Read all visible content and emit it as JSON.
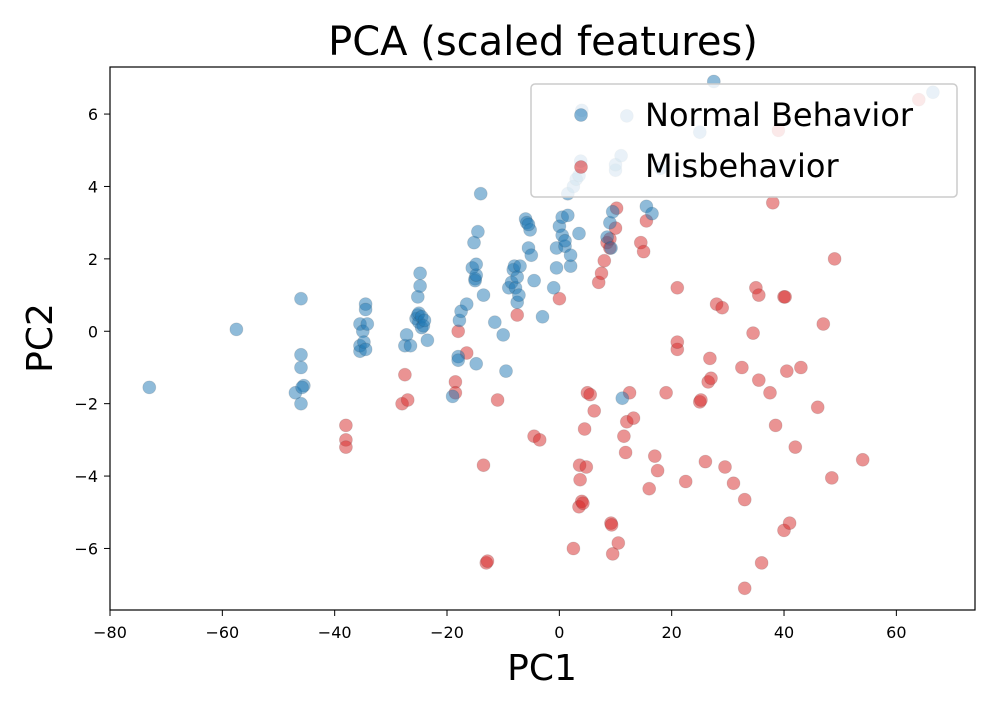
{
  "chart_data": {
    "type": "scatter",
    "title": "PCA (scaled features)",
    "xlabel": "PC1",
    "ylabel": "PC2",
    "xlim": [
      -80,
      74
    ],
    "ylim": [
      -7.7,
      7.3
    ],
    "xticks": [
      -80,
      -60,
      -40,
      -20,
      0,
      20,
      40,
      60
    ],
    "yticks": [
      -6,
      -4,
      -2,
      0,
      2,
      4,
      6
    ],
    "xtick_labels": [
      "−80",
      "−60",
      "−40",
      "−20",
      "0",
      "20",
      "40",
      "60"
    ],
    "ytick_labels": [
      "−6",
      "−4",
      "−2",
      "0",
      "2",
      "4",
      "6"
    ],
    "legend_position": "top-right",
    "series": [
      {
        "name": "Misbehavior",
        "color": "#d62728",
        "points": [
          [
            -38,
            -2.6
          ],
          [
            -38,
            -3.0
          ],
          [
            -38,
            -3.2
          ],
          [
            -28,
            -2.0
          ],
          [
            -27.5,
            -1.2
          ],
          [
            -27,
            -1.9
          ],
          [
            -18.5,
            -1.4
          ],
          [
            -18.5,
            -1.7
          ],
          [
            -18,
            0
          ],
          [
            -16.5,
            -0.6
          ],
          [
            -13.5,
            -3.7
          ],
          [
            -13,
            -6.4
          ],
          [
            -12.8,
            -6.35
          ],
          [
            -11,
            -1.9
          ],
          [
            -7.5,
            0.45
          ],
          [
            -4.5,
            -2.9
          ],
          [
            -3.5,
            -3.0
          ],
          [
            0,
            0.9
          ],
          [
            2.5,
            -6
          ],
          [
            3.5,
            -4.85
          ],
          [
            3.6,
            -3.7
          ],
          [
            3.7,
            -4.1
          ],
          [
            4.0,
            -4.7
          ],
          [
            4.2,
            -4.75
          ],
          [
            4.5,
            -2.7
          ],
          [
            4.8,
            -3.75
          ],
          [
            5.0,
            -1.7
          ],
          [
            5.5,
            -1.75
          ],
          [
            6.2,
            -2.2
          ],
          [
            7,
            1.35
          ],
          [
            7.5,
            1.6
          ],
          [
            8,
            1.95
          ],
          [
            8.5,
            2.45
          ],
          [
            9,
            2.3
          ],
          [
            9,
            2.55
          ],
          [
            9.2,
            -5.3
          ],
          [
            9.3,
            -5.35
          ],
          [
            9.5,
            -6.15
          ],
          [
            10,
            2.85
          ],
          [
            10.2,
            3.4
          ],
          [
            10.5,
            -5.85
          ],
          [
            11.5,
            -2.9
          ],
          [
            11.8,
            -3.35
          ],
          [
            12,
            -2.5
          ],
          [
            12.5,
            -1.7
          ],
          [
            13.2,
            -2.4
          ],
          [
            14.5,
            2.45
          ],
          [
            15,
            2.2
          ],
          [
            15.5,
            3.05
          ],
          [
            16,
            -4.35
          ],
          [
            17,
            -3.45
          ],
          [
            17.5,
            -3.85
          ],
          [
            19,
            -1.7
          ],
          [
            21,
            1.2
          ],
          [
            21,
            -0.5
          ],
          [
            21,
            -0.3
          ],
          [
            22.5,
            -4.15
          ],
          [
            25,
            -1.95
          ],
          [
            25.2,
            -1.9
          ],
          [
            26,
            -3.6
          ],
          [
            26.5,
            -1.4
          ],
          [
            26.8,
            -0.75
          ],
          [
            27,
            -1.3
          ],
          [
            28,
            0.75
          ],
          [
            29,
            0.65
          ],
          [
            29.5,
            -3.75
          ],
          [
            31,
            -4.2
          ],
          [
            32.5,
            -1.0
          ],
          [
            33,
            -4.65
          ],
          [
            33,
            -7.1
          ],
          [
            34.5,
            -0.05
          ],
          [
            35,
            1.2
          ],
          [
            35.5,
            1.0
          ],
          [
            35.5,
            -1.35
          ],
          [
            36,
            -6.4
          ],
          [
            37.5,
            -1.7
          ],
          [
            38,
            3.55
          ],
          [
            38.5,
            -2.6
          ],
          [
            39,
            5.55
          ],
          [
            40,
            0.95
          ],
          [
            40.2,
            0.95
          ],
          [
            40,
            -5.5
          ],
          [
            40.5,
            -1.1
          ],
          [
            41,
            -5.3
          ],
          [
            42,
            -3.2
          ],
          [
            43,
            -1.0
          ],
          [
            46,
            -2.1
          ],
          [
            47,
            0.2
          ],
          [
            48.5,
            -4.05
          ],
          [
            49,
            2.0
          ],
          [
            54,
            -3.55
          ],
          [
            64,
            6.4
          ]
        ]
      },
      {
        "name": "Normal Behavior",
        "color": "#1f77b4",
        "points": [
          [
            -73,
            -1.55
          ],
          [
            -57.5,
            0.05
          ],
          [
            -47,
            -1.7
          ],
          [
            -46,
            0.9
          ],
          [
            -46,
            -0.65
          ],
          [
            -46,
            -1.0
          ],
          [
            -46,
            -2.0
          ],
          [
            -45.5,
            -1.5
          ],
          [
            -45.8,
            -1.55
          ],
          [
            -35.5,
            0.2
          ],
          [
            -35.5,
            -0.55
          ],
          [
            -35.5,
            -0.4
          ],
          [
            -35,
            0.0
          ],
          [
            -34.8,
            -0.3
          ],
          [
            -34.5,
            0.75
          ],
          [
            -34.5,
            0.6
          ],
          [
            -34.2,
            0.2
          ],
          [
            -34.5,
            -0.5
          ],
          [
            -27.5,
            -0.4
          ],
          [
            -27.2,
            -0.1
          ],
          [
            -26.5,
            -0.4
          ],
          [
            -25.5,
            0.35
          ],
          [
            -25.2,
            0.45
          ],
          [
            -25,
            0.25
          ],
          [
            -25,
            0.5
          ],
          [
            -25.2,
            0.95
          ],
          [
            -24.8,
            1.25
          ],
          [
            -24.8,
            1.6
          ],
          [
            -24.5,
            0.1
          ],
          [
            -24.5,
            0.4
          ],
          [
            -24.2,
            0.15
          ],
          [
            -24,
            0.3
          ],
          [
            -23.5,
            -0.25
          ],
          [
            -19,
            -1.8
          ],
          [
            -18,
            -0.7
          ],
          [
            -18,
            -0.8
          ],
          [
            -17.8,
            0.3
          ],
          [
            -17.5,
            0.55
          ],
          [
            -16.5,
            0.75
          ],
          [
            -15.5,
            1.75
          ],
          [
            -15.2,
            2.45
          ],
          [
            -15,
            1.45
          ],
          [
            -15,
            1.4
          ],
          [
            -14.8,
            1.55
          ],
          [
            -14.8,
            1.85
          ],
          [
            -14.5,
            2.75
          ],
          [
            -14.8,
            -0.9
          ],
          [
            -14,
            3.8
          ],
          [
            -13.5,
            1.0
          ],
          [
            -11.5,
            0.25
          ],
          [
            -10,
            -0.1
          ],
          [
            -9.5,
            -1.1
          ],
          [
            -9,
            1.2
          ],
          [
            -8.5,
            1.35
          ],
          [
            -8.2,
            1.7
          ],
          [
            -8,
            1.8
          ],
          [
            -7.8,
            1.2
          ],
          [
            -7.5,
            1.5
          ],
          [
            -7.5,
            0.8
          ],
          [
            -7.2,
            1.0
          ],
          [
            -7,
            1.8
          ],
          [
            -6,
            3.1
          ],
          [
            -5.8,
            3.0
          ],
          [
            -5.5,
            2.3
          ],
          [
            -5.2,
            2.8
          ],
          [
            -5.5,
            2.95
          ],
          [
            -5,
            2.1
          ],
          [
            -4.5,
            1.4
          ],
          [
            -3,
            0.4
          ],
          [
            -1,
            1.2
          ],
          [
            -0.5,
            1.75
          ],
          [
            -0.5,
            2.3
          ],
          [
            0,
            2.9
          ],
          [
            0.5,
            2.65
          ],
          [
            0.5,
            3.15
          ],
          [
            1,
            2.35
          ],
          [
            1,
            2.5
          ],
          [
            1.5,
            3.2
          ],
          [
            1.5,
            3.8
          ],
          [
            2,
            1.8
          ],
          [
            2,
            2.1
          ],
          [
            2.5,
            4.0
          ],
          [
            3,
            4.2
          ],
          [
            3.5,
            2.7
          ],
          [
            3.8,
            4.7
          ],
          [
            3.5,
            4.3
          ],
          [
            4,
            6.1
          ],
          [
            8.5,
            2.6
          ],
          [
            9,
            3.0
          ],
          [
            9.2,
            2.3
          ],
          [
            9.5,
            3.3
          ],
          [
            10,
            4.45
          ],
          [
            10,
            4.6
          ],
          [
            11,
            4.85
          ],
          [
            11.2,
            -1.85
          ],
          [
            12,
            5.95
          ],
          [
            15.5,
            3.45
          ],
          [
            16.5,
            3.25
          ],
          [
            18,
            4.5
          ],
          [
            25,
            5.5
          ],
          [
            27.5,
            6.9
          ],
          [
            66.5,
            6.6
          ]
        ]
      }
    ]
  }
}
